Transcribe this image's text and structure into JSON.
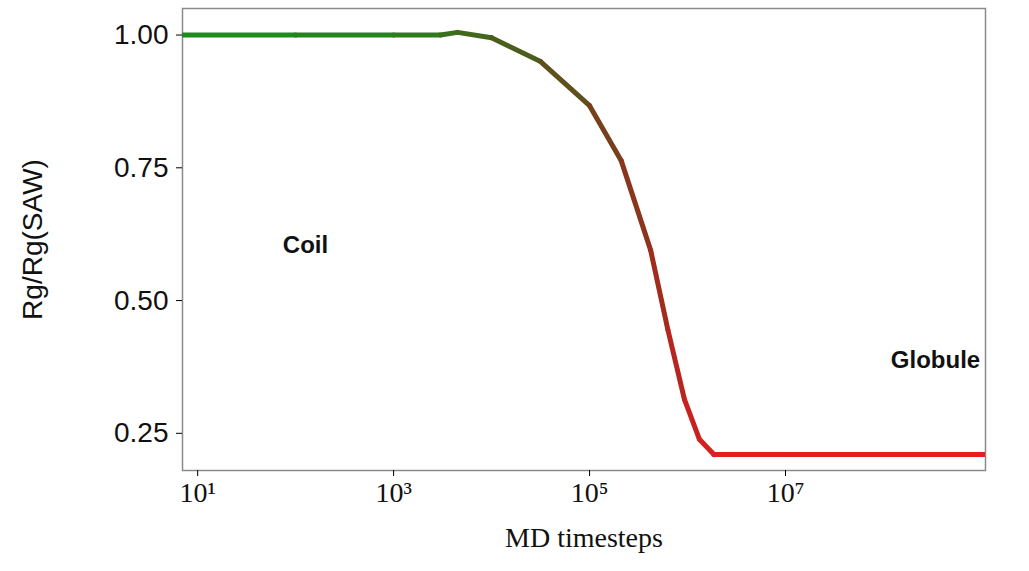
{
  "chart_data": {
    "type": "line",
    "x_label": "MD timesteps",
    "y_label": "Rg/Rg(SAW)",
    "annotations": [
      "Coil",
      "Globule"
    ],
    "log": "x",
    "grid": false,
    "x": [
      7,
      10,
      100,
      1000,
      3000,
      4500,
      10000,
      31623,
      100000,
      210000,
      420000,
      630000,
      930000,
      1320000,
      1860000,
      10000000,
      100000000,
      1100000000
    ],
    "values": [
      1.0,
      1.0,
      1.0,
      1.0,
      1.0,
      1.005,
      0.995,
      0.95,
      0.867,
      0.764,
      0.595,
      0.445,
      0.314,
      0.239,
      0.21,
      0.21,
      0.21,
      0.21
    ],
    "colors": [
      "#1f8a1f",
      "#1f8a1f",
      "#258220",
      "#2f7a1f",
      "#3a701d",
      "#40691c",
      "#4b5e1b",
      "#5e4f1b",
      "#75401b",
      "#8a351c",
      "#a02c1e",
      "#b5261f",
      "#c82220",
      "#d62020",
      "#df1f1f",
      "#e21f1f",
      "#e31f1f",
      "#e31f1f"
    ],
    "xlim": [
      7,
      1100000000
    ],
    "xticks": [
      {
        "value": 10,
        "label": "10¹"
      },
      {
        "value": 1000,
        "label": "10³"
      },
      {
        "value": 100000,
        "label": "10⁵"
      },
      {
        "value": 10000000,
        "label": "10⁷"
      }
    ],
    "ylim": [
      0.18,
      1.05
    ],
    "yticks": [
      0.25,
      {
        "value": 0.5,
        "label": "0.50"
      },
      0.75,
      {
        "value": 1,
        "label": "1.00"
      }
    ]
  }
}
